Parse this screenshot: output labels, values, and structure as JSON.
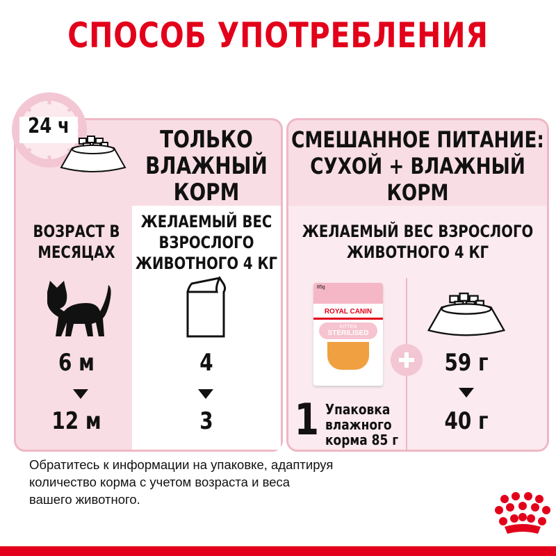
{
  "title": "СПОСОБ УПОТРЕБЛЕНИЯ",
  "clock_label": "24 ч",
  "wet_only": {
    "heading": [
      "ТОЛЬКО",
      "ВЛАЖНЫЙ",
      "КОРМ"
    ],
    "age_label": [
      "ВОЗРАСТ В",
      "МЕСЯЦАХ"
    ],
    "weight_label": [
      "ЖЕЛАЕМЫЙ ВЕС",
      "ВЗРОСЛОГО",
      "ЖИВОТНОГО 4 КГ"
    ],
    "age_from": "6 м",
    "age_to": "12 м",
    "pouches_from": "4",
    "pouches_to": "3"
  },
  "mixed": {
    "heading": [
      "СМЕШАННОЕ ПИТАНИЕ:",
      "СУХОЙ + ВЛАЖНЫЙ",
      "КОРМ"
    ],
    "weight_label": [
      "ЖЕЛАЕМЫЙ ВЕС ВЗРОСЛОГО",
      "ЖИВОТНОГО 4 КГ"
    ],
    "pouch_count": "1",
    "pouch_text": [
      "Упаковка",
      "влажного",
      "корма 85 г"
    ],
    "pouch_image": {
      "weight": "85g",
      "brand": "ROYAL CANIN",
      "line1": "KITTEN",
      "line2": "STERILISED"
    },
    "dry_from": "59 г",
    "dry_to": "40 г"
  },
  "footer": [
    "Обратитесь к информации на упаковке, адаптируя",
    "количество корма с учетом возраста и веса",
    "вашего животного."
  ],
  "colors": {
    "brand_red": "#e2001a",
    "panel_pink": "#f8dde4",
    "border_pink": "#efb7c5"
  }
}
